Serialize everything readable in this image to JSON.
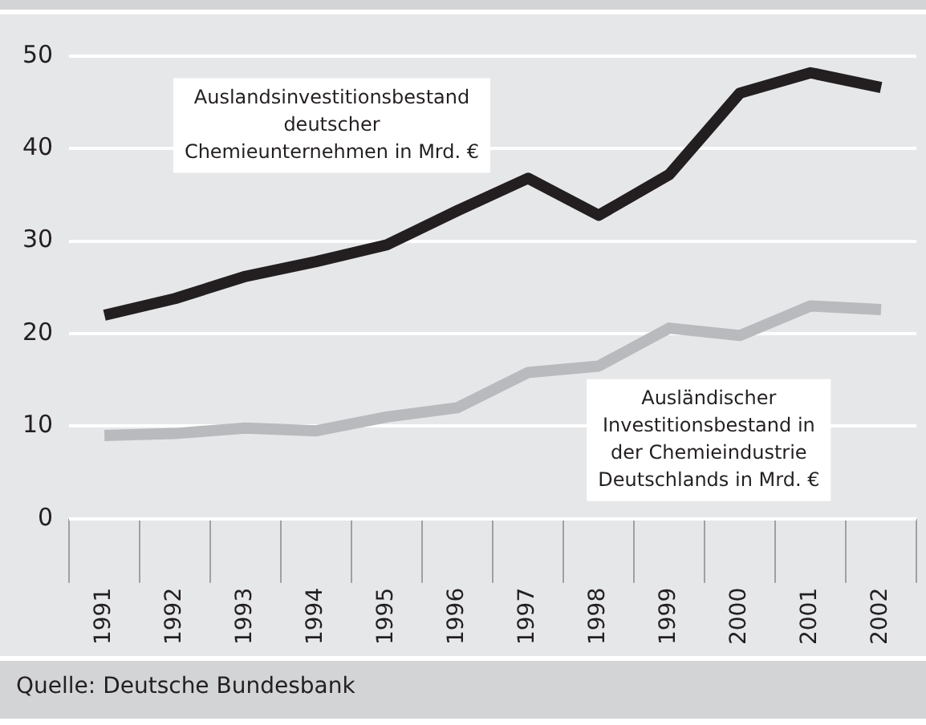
{
  "chart_data": {
    "type": "line",
    "categories": [
      "1991",
      "1992",
      "1993",
      "1994",
      "1995",
      "1996",
      "1997",
      "1998",
      "1999",
      "2000",
      "2001",
      "2002"
    ],
    "series": [
      {
        "name": "Auslandsinvestitionsbestand deutscher Chemieunternehmen in Mrd. €",
        "color": "#231f20",
        "values": [
          22,
          23.8,
          26.2,
          27.8,
          29.6,
          33.3,
          36.8,
          32.8,
          37.2,
          46,
          48.2,
          46.6
        ]
      },
      {
        "name": "Ausländischer Investitionsbestand in der Chemieindustrie Deutschlands in Mrd. €",
        "color": "#b8babd",
        "values": [
          9,
          9.2,
          9.8,
          9.5,
          11,
          12,
          15.8,
          16.5,
          20.6,
          19.8,
          23,
          22.6
        ]
      }
    ],
    "ylim": [
      0,
      50
    ],
    "yticks": [
      0,
      10,
      20,
      30,
      40,
      50
    ],
    "grid": "y",
    "legend": false,
    "marker": "none",
    "line_style": "solid",
    "annotations": [
      "Quelle: Deutsche Bundesbank"
    ]
  }
}
